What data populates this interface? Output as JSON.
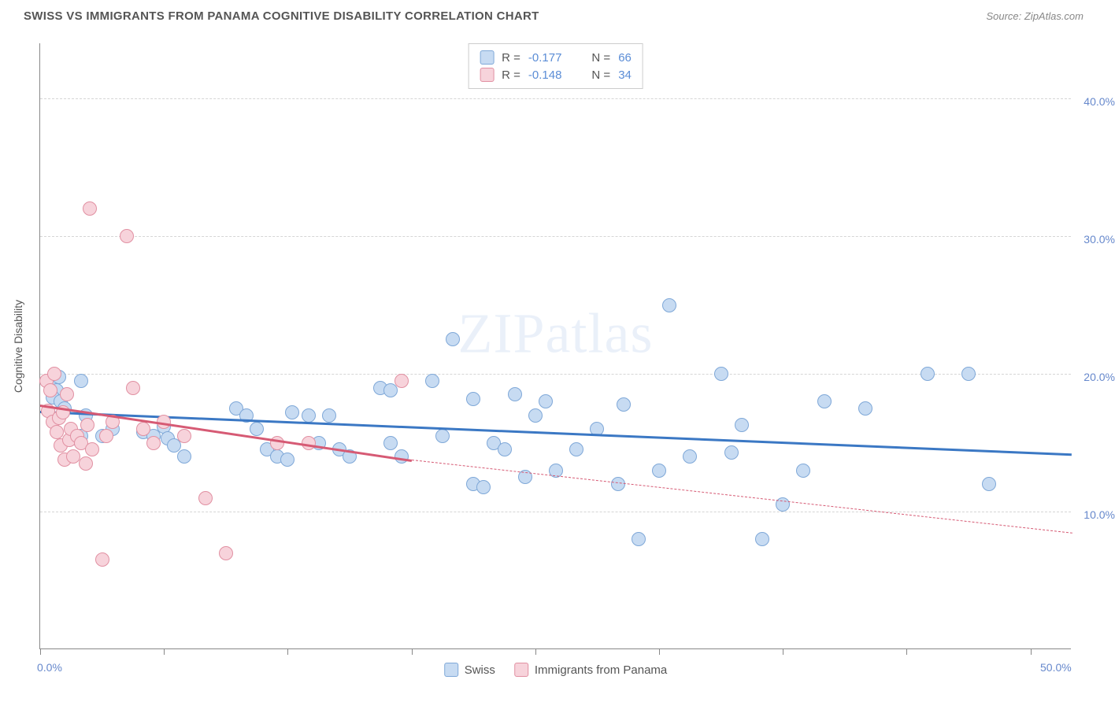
{
  "header": {
    "title": "SWISS VS IMMIGRANTS FROM PANAMA COGNITIVE DISABILITY CORRELATION CHART",
    "source_prefix": "Source: ",
    "source_name": "ZipAtlas.com"
  },
  "watermark": {
    "zip": "ZIP",
    "atlas": "atlas"
  },
  "chart": {
    "type": "scatter",
    "y_axis_title": "Cognitive Disability",
    "xlim": [
      0,
      50
    ],
    "ylim": [
      0,
      44
    ],
    "x_ticks": [
      0,
      6,
      12,
      18,
      24,
      30,
      36,
      42,
      48
    ],
    "x_labels": [
      {
        "value": 0,
        "label": "0.0%"
      },
      {
        "value": 50,
        "label": "50.0%"
      }
    ],
    "y_gridlines": [
      {
        "value": 10,
        "label": "10.0%"
      },
      {
        "value": 20,
        "label": "20.0%"
      },
      {
        "value": 30,
        "label": "30.0%"
      },
      {
        "value": 40,
        "label": "40.0%"
      }
    ],
    "background_color": "#ffffff",
    "grid_color": "#d5d5d5",
    "series": [
      {
        "name": "Swiss",
        "fill_color": "#c7dbf2",
        "stroke_color": "#7fa8d8",
        "line_color": "#3b78c4",
        "point_radius": 9,
        "stroke_width": 1.5,
        "trend": {
          "x1": 0,
          "y1": 17.3,
          "x2": 50,
          "y2": 14.2
        },
        "points": [
          [
            0.5,
            19.2
          ],
          [
            0.8,
            18.8
          ],
          [
            0.6,
            18.3
          ],
          [
            0.9,
            19.8
          ],
          [
            1.0,
            18.0
          ],
          [
            1.2,
            17.5
          ],
          [
            1.7,
            15.3
          ],
          [
            2.0,
            19.5
          ],
          [
            2.0,
            15.5
          ],
          [
            2.2,
            17.0
          ],
          [
            3.0,
            15.5
          ],
          [
            3.5,
            16.0
          ],
          [
            5.0,
            15.8
          ],
          [
            5.5,
            15.5
          ],
          [
            6.0,
            16.2
          ],
          [
            6.2,
            15.3
          ],
          [
            6.5,
            14.8
          ],
          [
            7.0,
            14.0
          ],
          [
            9.5,
            17.5
          ],
          [
            10.0,
            17.0
          ],
          [
            10.5,
            16.0
          ],
          [
            11.0,
            14.5
          ],
          [
            11.5,
            14.0
          ],
          [
            12.0,
            13.8
          ],
          [
            12.2,
            17.2
          ],
          [
            13.0,
            17.0
          ],
          [
            13.5,
            15.0
          ],
          [
            14.0,
            17.0
          ],
          [
            14.5,
            14.5
          ],
          [
            15.0,
            14.0
          ],
          [
            16.5,
            19.0
          ],
          [
            17.0,
            18.8
          ],
          [
            17.0,
            15.0
          ],
          [
            17.5,
            14.0
          ],
          [
            19.0,
            19.5
          ],
          [
            19.5,
            15.5
          ],
          [
            20.0,
            22.5
          ],
          [
            21.0,
            18.2
          ],
          [
            21.0,
            12.0
          ],
          [
            21.5,
            11.8
          ],
          [
            22.0,
            15.0
          ],
          [
            22.5,
            14.5
          ],
          [
            23.0,
            18.5
          ],
          [
            23.5,
            12.5
          ],
          [
            24.0,
            17.0
          ],
          [
            24.5,
            18.0
          ],
          [
            25.0,
            13.0
          ],
          [
            26.0,
            14.5
          ],
          [
            27.0,
            16.0
          ],
          [
            28.0,
            12.0
          ],
          [
            28.3,
            17.8
          ],
          [
            29.0,
            8.0
          ],
          [
            30.0,
            13.0
          ],
          [
            30.5,
            25.0
          ],
          [
            31.5,
            14.0
          ],
          [
            33.0,
            20.0
          ],
          [
            33.5,
            14.3
          ],
          [
            34.0,
            16.3
          ],
          [
            35.0,
            8.0
          ],
          [
            36.0,
            10.5
          ],
          [
            37.0,
            13.0
          ],
          [
            38.0,
            18.0
          ],
          [
            40.0,
            17.5
          ],
          [
            43.0,
            20.0
          ],
          [
            45.0,
            20.0
          ],
          [
            46.0,
            12.0
          ]
        ],
        "R": "-0.177",
        "N": "66"
      },
      {
        "name": "Immigrants from Panama",
        "fill_color": "#f7d3db",
        "stroke_color": "#e190a2",
        "line_color": "#d65a74",
        "point_radius": 9,
        "stroke_width": 1.5,
        "trend_solid": {
          "x1": 0,
          "y1": 17.8,
          "x2": 18,
          "y2": 13.8
        },
        "trend_dashed": {
          "x1": 18,
          "y1": 13.8,
          "x2": 50,
          "y2": 8.5
        },
        "points": [
          [
            0.3,
            19.5
          ],
          [
            0.4,
            17.3
          ],
          [
            0.5,
            18.8
          ],
          [
            0.6,
            16.5
          ],
          [
            0.7,
            20.0
          ],
          [
            0.8,
            15.8
          ],
          [
            0.9,
            16.8
          ],
          [
            1.0,
            14.8
          ],
          [
            1.1,
            17.2
          ],
          [
            1.2,
            13.8
          ],
          [
            1.3,
            18.5
          ],
          [
            1.4,
            15.2
          ],
          [
            1.5,
            16.0
          ],
          [
            1.6,
            14.0
          ],
          [
            1.8,
            15.5
          ],
          [
            2.0,
            15.0
          ],
          [
            2.2,
            13.5
          ],
          [
            2.3,
            16.3
          ],
          [
            2.5,
            14.5
          ],
          [
            2.4,
            32.0
          ],
          [
            3.0,
            6.5
          ],
          [
            3.2,
            15.5
          ],
          [
            3.5,
            16.5
          ],
          [
            4.2,
            30.0
          ],
          [
            4.5,
            19.0
          ],
          [
            5.0,
            16.0
          ],
          [
            5.5,
            15.0
          ],
          [
            6.0,
            16.5
          ],
          [
            7.0,
            15.5
          ],
          [
            8.0,
            11.0
          ],
          [
            9.0,
            7.0
          ],
          [
            11.5,
            15.0
          ],
          [
            13.0,
            15.0
          ],
          [
            17.5,
            19.5
          ]
        ],
        "R": "-0.148",
        "N": "34"
      }
    ]
  },
  "legend_top": {
    "r_label": "R =",
    "n_label": "N ="
  },
  "legend_bottom": {
    "items": [
      {
        "label": "Swiss",
        "series": 0
      },
      {
        "label": "Immigrants from Panama",
        "series": 1
      }
    ]
  }
}
